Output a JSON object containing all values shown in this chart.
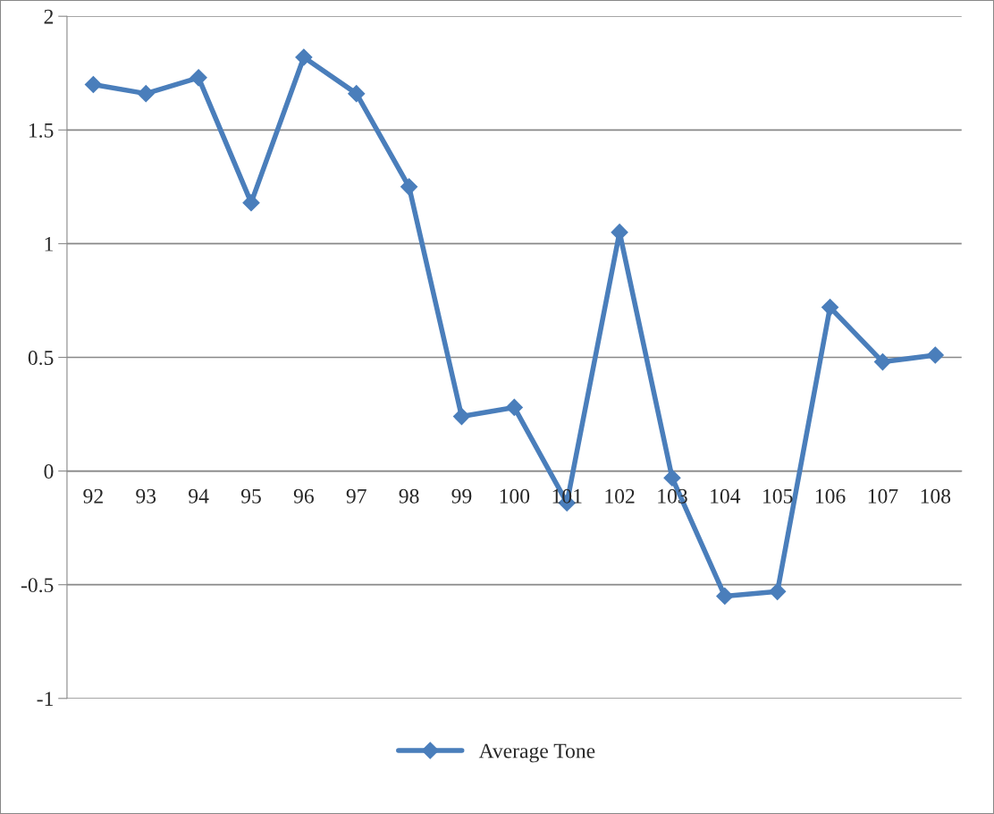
{
  "chart_data": {
    "type": "line",
    "categories": [
      "92",
      "93",
      "94",
      "95",
      "96",
      "97",
      "98",
      "99",
      "100",
      "101",
      "102",
      "103",
      "104",
      "105",
      "106",
      "107",
      "108"
    ],
    "series": [
      {
        "name": "Average Tone",
        "color": "#4a7ebb",
        "values": [
          1.7,
          1.66,
          1.73,
          1.18,
          1.82,
          1.66,
          1.25,
          0.24,
          0.28,
          -0.14,
          1.05,
          -0.03,
          -0.55,
          -0.53,
          0.72,
          0.48,
          0.51
        ]
      }
    ],
    "ylim": [
      -1,
      2
    ],
    "yticks": [
      -1,
      -0.5,
      0,
      0.5,
      1,
      1.5,
      2
    ],
    "grid": "y",
    "legend": "bottom",
    "marker": "diamond",
    "line_style": "solid"
  }
}
